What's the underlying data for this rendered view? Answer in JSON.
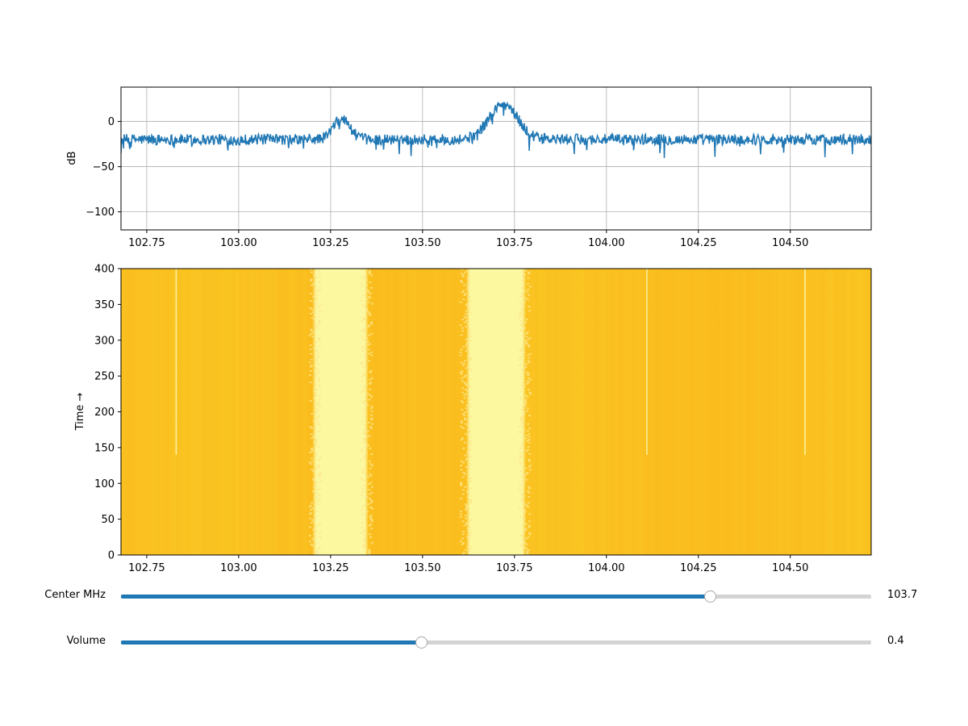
{
  "chart_data": [
    {
      "type": "line",
      "title": "",
      "xlabel": "",
      "ylabel": "dB",
      "xlim": [
        102.68,
        104.72
      ],
      "ylim": [
        -120,
        38
      ],
      "xticks": [
        "102.75",
        "103.00",
        "103.25",
        "103.50",
        "103.75",
        "104.00",
        "104.25",
        "104.50"
      ],
      "yticks": [
        "0",
        "−50",
        "−100"
      ],
      "grid": true,
      "color": "#1f77b4",
      "noise_floor_db": -20,
      "peaks": [
        {
          "center_mhz": 103.28,
          "width_mhz": 0.07,
          "level_db": 3
        },
        {
          "center_mhz": 103.72,
          "width_mhz": 0.12,
          "level_db": 19
        }
      ]
    },
    {
      "type": "heatmap",
      "title": "",
      "xlabel": "",
      "ylabel": "Time →",
      "xlim": [
        102.68,
        104.72
      ],
      "ylim": [
        0,
        400
      ],
      "xticks": [
        "102.75",
        "103.00",
        "103.25",
        "103.50",
        "103.75",
        "104.00",
        "104.25",
        "104.50"
      ],
      "yticks": [
        "0",
        "50",
        "100",
        "150",
        "200",
        "250",
        "300",
        "350",
        "400"
      ],
      "colormap": "inferno (yellow-orange range)",
      "bright_bands_mhz": [
        [
          103.21,
          103.35
        ],
        [
          103.62,
          103.78
        ]
      ],
      "spur_lines_mhz": [
        102.83,
        104.11,
        104.54
      ]
    }
  ],
  "sliders": [
    {
      "label": "Center MHz",
      "value_text": "103.7",
      "fraction": 0.785
    },
    {
      "label": "Volume",
      "value_text": "0.4",
      "fraction": 0.4
    }
  ],
  "colors": {
    "line": "#1f77b4",
    "slider_fill": "#1f77b4",
    "slider_track": "#d3d3d3",
    "grid": "#b0b0b0"
  }
}
